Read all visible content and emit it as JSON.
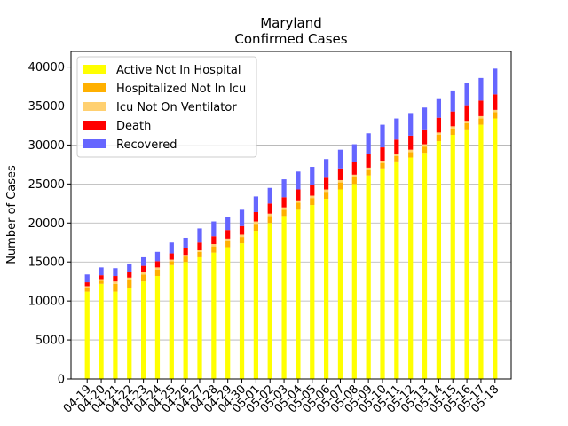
{
  "chart_data": {
    "type": "bar",
    "stacked": true,
    "title": "Maryland",
    "subtitle": "Confirmed Cases",
    "xlabel": "",
    "ylabel": "Number of Cases",
    "ylim": [
      0,
      42000
    ],
    "yticks": [
      0,
      5000,
      10000,
      15000,
      20000,
      25000,
      30000,
      35000,
      40000
    ],
    "grid": "horizontal",
    "legend_position": "top-left",
    "categories": [
      "04-19",
      "04-20",
      "04-21",
      "04-22",
      "04-23",
      "04-24",
      "04-25",
      "04-26",
      "04-27",
      "04-28",
      "04-29",
      "04-30",
      "05-01",
      "05-02",
      "05-03",
      "05-04",
      "05-05",
      "05-06",
      "05-07",
      "05-08",
      "05-09",
      "05-10",
      "05-11",
      "05-12",
      "05-13",
      "05-14",
      "05-15",
      "05-16",
      "05-17",
      "05-18"
    ],
    "series": [
      {
        "name": "Active Not In Hospital",
        "color": "#ffff00",
        "values": [
          11200,
          12200,
          11200,
          11700,
          12500,
          13200,
          14600,
          15000,
          15600,
          16200,
          16900,
          17400,
          19000,
          20000,
          20900,
          21700,
          22300,
          23100,
          24300,
          25000,
          26100,
          27000,
          27900,
          28400,
          29000,
          30500,
          31300,
          32000,
          32600,
          33400
        ]
      },
      {
        "name": "Hospitalized Not In Icu",
        "color": "#ffb000",
        "values": [
          500,
          400,
          1000,
          1000,
          900,
          800,
          500,
          700,
          700,
          800,
          800,
          800,
          900,
          900,
          800,
          900,
          900,
          900,
          900,
          900,
          700,
          700,
          700,
          700,
          800,
          800,
          800,
          800,
          800,
          800
        ]
      },
      {
        "name": "Icu Not On Ventilator",
        "color": "#ffd070",
        "values": [
          200,
          200,
          300,
          300,
          300,
          300,
          200,
          200,
          200,
          300,
          300,
          300,
          300,
          300,
          300,
          300,
          300,
          300,
          300,
          300,
          300,
          300,
          300,
          300,
          300,
          300,
          300,
          300,
          300,
          300
        ]
      },
      {
        "name": "Death",
        "color": "#ff0000",
        "values": [
          500,
          500,
          700,
          700,
          800,
          800,
          800,
          900,
          1000,
          1000,
          1100,
          1100,
          1200,
          1300,
          1300,
          1400,
          1400,
          1500,
          1500,
          1600,
          1700,
          1700,
          1800,
          1800,
          1900,
          1900,
          1900,
          2000,
          2000,
          2000
        ]
      },
      {
        "name": "Recovered",
        "color": "#6666ff",
        "values": [
          1000,
          1000,
          1000,
          1100,
          1100,
          1200,
          1400,
          1300,
          1800,
          1900,
          1700,
          2100,
          2000,
          2000,
          2300,
          2300,
          2300,
          2400,
          2400,
          2300,
          2700,
          2900,
          2700,
          2900,
          2800,
          2500,
          2700,
          2900,
          2900,
          3300
        ]
      }
    ]
  }
}
